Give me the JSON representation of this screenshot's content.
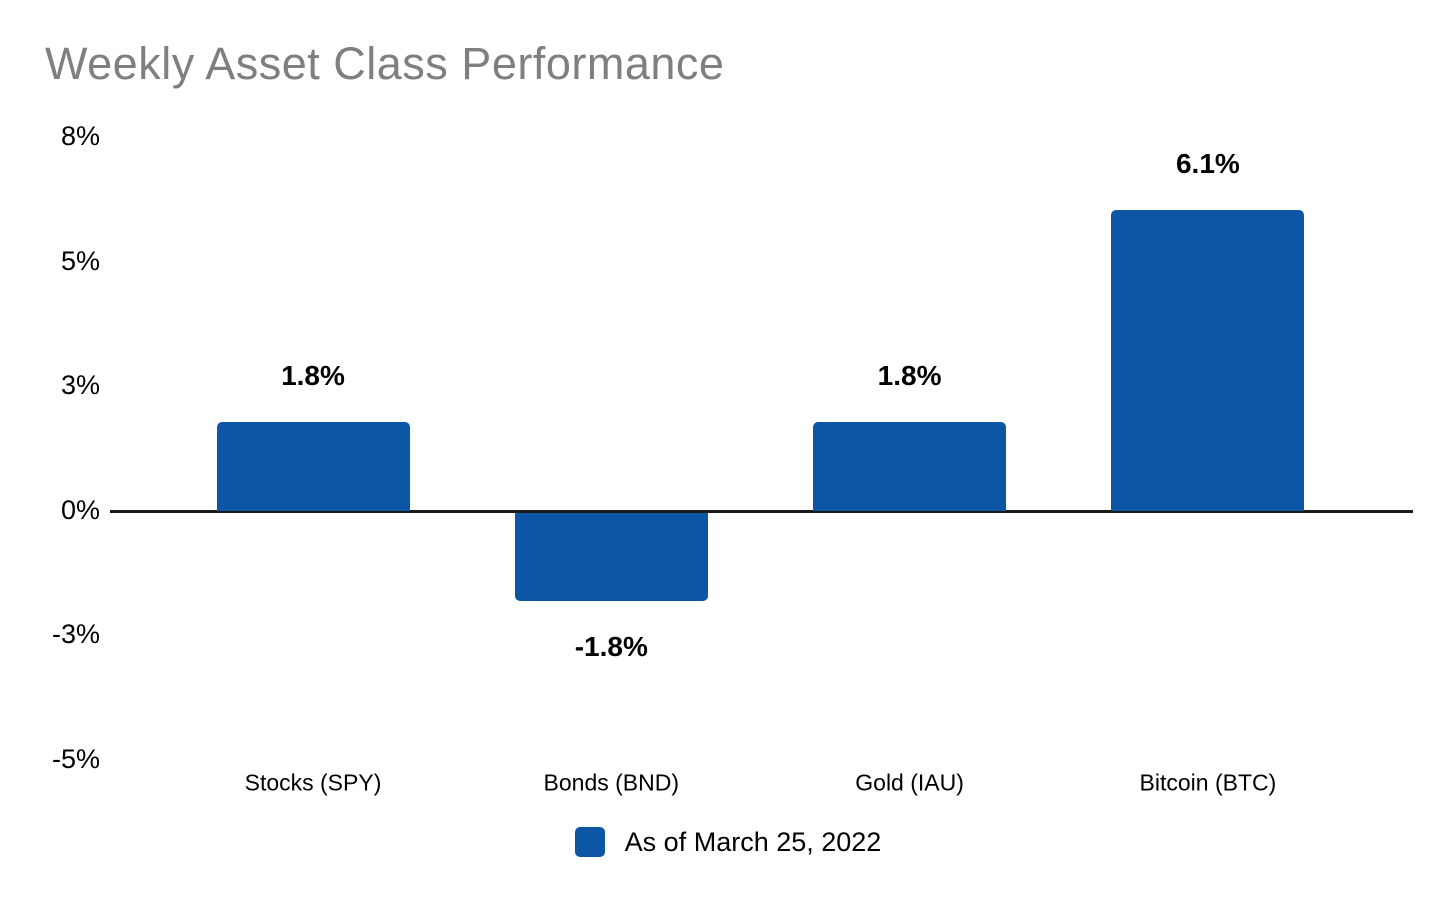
{
  "title": "Weekly Asset Class Performance",
  "legend": {
    "label": "As of March 25, 2022"
  },
  "colors": {
    "bar": "#0d55a5",
    "title_text": "#7f7f7f",
    "axis_line": "#1a1a1a",
    "label_text": "#000000"
  },
  "chart_data": {
    "type": "bar",
    "title": "Weekly Asset Class Performance",
    "categories": [
      "Stocks (SPY)",
      "Bonds (BND)",
      "Gold (IAU)",
      "Bitcoin (BTC)"
    ],
    "values": [
      1.8,
      -1.8,
      1.8,
      6.1
    ],
    "data_labels": [
      "1.8%",
      "-1.8%",
      "1.8%",
      "6.1%"
    ],
    "series": [
      {
        "name": "As of March 25, 2022",
        "values": [
          1.8,
          -1.8,
          1.8,
          6.1
        ]
      }
    ],
    "xlabel": "",
    "ylabel": "",
    "y_axis": {
      "tick_labels": [
        "8%",
        "5%",
        "3%",
        "0%",
        "-3%",
        "-5%"
      ],
      "approx_tick_values": [
        7.6,
        5.05,
        2.5,
        0,
        -2.5,
        -5.05
      ],
      "ylim": [
        -5.6,
        8.1
      ],
      "gridlines": false,
      "zero_baseline": true
    },
    "legend_position": "bottom-center",
    "unit": "%"
  }
}
